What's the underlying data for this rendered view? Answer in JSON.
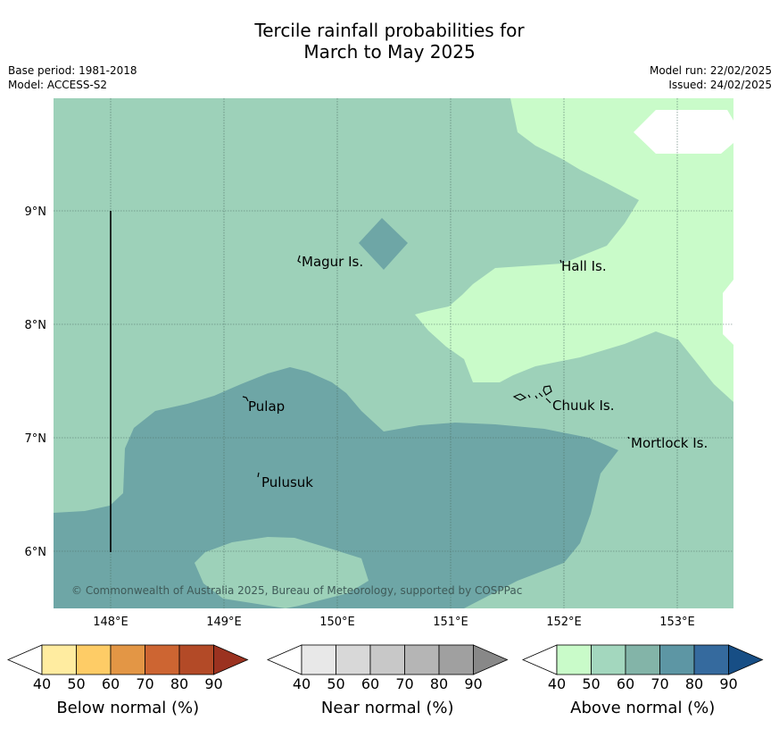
{
  "title_line1": "Tercile rainfall probabilities for",
  "title_line2": "March to May 2025",
  "meta": {
    "base_period": "Base period: 1981-2018",
    "model": "Model: ACCESS-S2",
    "model_run": "Model run: 22/02/2025",
    "issued": "Issued: 24/02/2025"
  },
  "map": {
    "lon_ticks": [
      "148°E",
      "149°E",
      "150°E",
      "151°E",
      "152°E",
      "153°E"
    ],
    "lat_ticks": [
      "9°N",
      "8°N",
      "7°N",
      "6°N"
    ],
    "places": {
      "magur": "Magur Is.",
      "hall": "Hall Is.",
      "pulap": "Pulap",
      "chuuk": "Chuuk Is.",
      "mortlock": "Mortlock Is.",
      "pulusuk": "Pulusuk"
    },
    "copyright": "© Commonwealth of Australia 2025, Bureau of Meteorology, supported by COSPPac",
    "colors": {
      "above_40_50": "#c9fbc9",
      "above_50_60": "#9dd1b9",
      "above_60_70": "#6ea6a6"
    }
  },
  "legends": {
    "tick_labels": [
      "40",
      "50",
      "60",
      "70",
      "80",
      "90"
    ],
    "below": {
      "title": "Below normal (%)",
      "colors": [
        "#ffffff",
        "#ffeca0",
        "#fecc66",
        "#e39645",
        "#cd6532",
        "#b34a27",
        "#9b3220"
      ]
    },
    "near": {
      "title": "Near normal (%)",
      "colors": [
        "#ffffff",
        "#e8e8e8",
        "#d8d8d8",
        "#c8c8c8",
        "#b5b5b5",
        "#a0a0a0",
        "#888888"
      ]
    },
    "above": {
      "title": "Above normal (%)",
      "colors": [
        "#ffffff",
        "#c9fbc9",
        "#a3d7be",
        "#83b4a8",
        "#5d96a4",
        "#356a9e",
        "#174e85"
      ]
    }
  }
}
